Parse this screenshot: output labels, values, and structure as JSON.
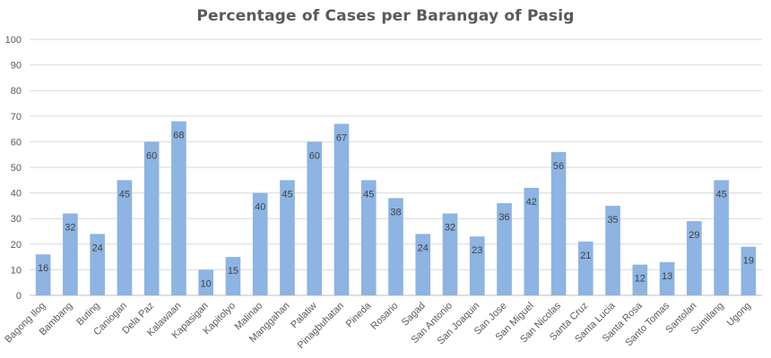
{
  "chart_data": {
    "type": "bar",
    "title": "Percentage of Cases per Barangay of Pasig",
    "xlabel": "",
    "ylabel": "",
    "ylim": [
      0,
      100
    ],
    "yticks": [
      0,
      10,
      20,
      30,
      40,
      50,
      60,
      70,
      80,
      90,
      100
    ],
    "grid": true,
    "legend": "none",
    "bar_color": "#8db4e2",
    "categories": [
      "Bagong Ilog",
      "Bambang",
      "Buting",
      "Caniogan",
      "Dela Paz",
      "Kalawaan",
      "Kapasigan",
      "Kapitolyo",
      "Malinao",
      "Manggahan",
      "Palatiw",
      "Pinagbuhatan",
      "Pineda",
      "Rosario",
      "Sagad",
      "San Antonio",
      "San Joaquin",
      "San Jose",
      "San Miguel",
      "San Nicolas",
      "Santa Cruz",
      "Santa Lucia",
      "Santa Rosa",
      "Santo Tomas",
      "Santolan",
      "Sumilang",
      "Ugong"
    ],
    "values": [
      16,
      32,
      24,
      45,
      60,
      68,
      10,
      15,
      40,
      45,
      60,
      67,
      45,
      38,
      24,
      32,
      23,
      36,
      42,
      56,
      21,
      35,
      12,
      13,
      29,
      45,
      19
    ]
  }
}
